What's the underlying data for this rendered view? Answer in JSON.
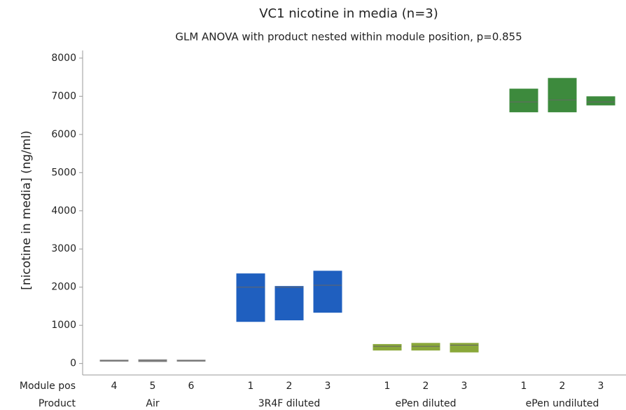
{
  "chart_data": {
    "type": "box",
    "title": "VC1 nicotine in media (n=3)",
    "subtitle": "GLM ANOVA with product nested within module position, p=0.855",
    "ylabel": "[nicotine in media] (ng/ml)",
    "row_labels": [
      "Module pos",
      "Product"
    ],
    "ylim": [
      -300,
      8200
    ],
    "yticks": [
      0,
      1000,
      2000,
      3000,
      4000,
      5000,
      6000,
      7000,
      8000
    ],
    "groups": [
      {
        "name": "Air",
        "color": "#8c8c8c",
        "positions": [
          "4",
          "5",
          "6"
        ],
        "low": [
          60,
          50,
          60
        ],
        "median": [
          70,
          70,
          70
        ],
        "high": [
          90,
          100,
          90
        ]
      },
      {
        "name": "3R4F diluted",
        "color": "#1f5fbf",
        "positions": [
          "1",
          "2",
          "3"
        ],
        "low": [
          1100,
          1140,
          1340
        ],
        "median": [
          2000,
          2000,
          2050
        ],
        "high": [
          2350,
          2020,
          2420
        ]
      },
      {
        "name": "ePen diluted",
        "color": "#8aa83a",
        "positions": [
          "1",
          "2",
          "3"
        ],
        "low": [
          350,
          350,
          300
        ],
        "median": [
          450,
          450,
          480
        ],
        "high": [
          500,
          530,
          530
        ]
      },
      {
        "name": "ePen undiluted",
        "color": "#3d8a3d",
        "positions": [
          "1",
          "2",
          "3"
        ],
        "low": [
          6590,
          6590,
          6770
        ],
        "median": [
          6850,
          6900,
          6850
        ],
        "high": [
          7190,
          7470,
          6990
        ]
      }
    ]
  }
}
